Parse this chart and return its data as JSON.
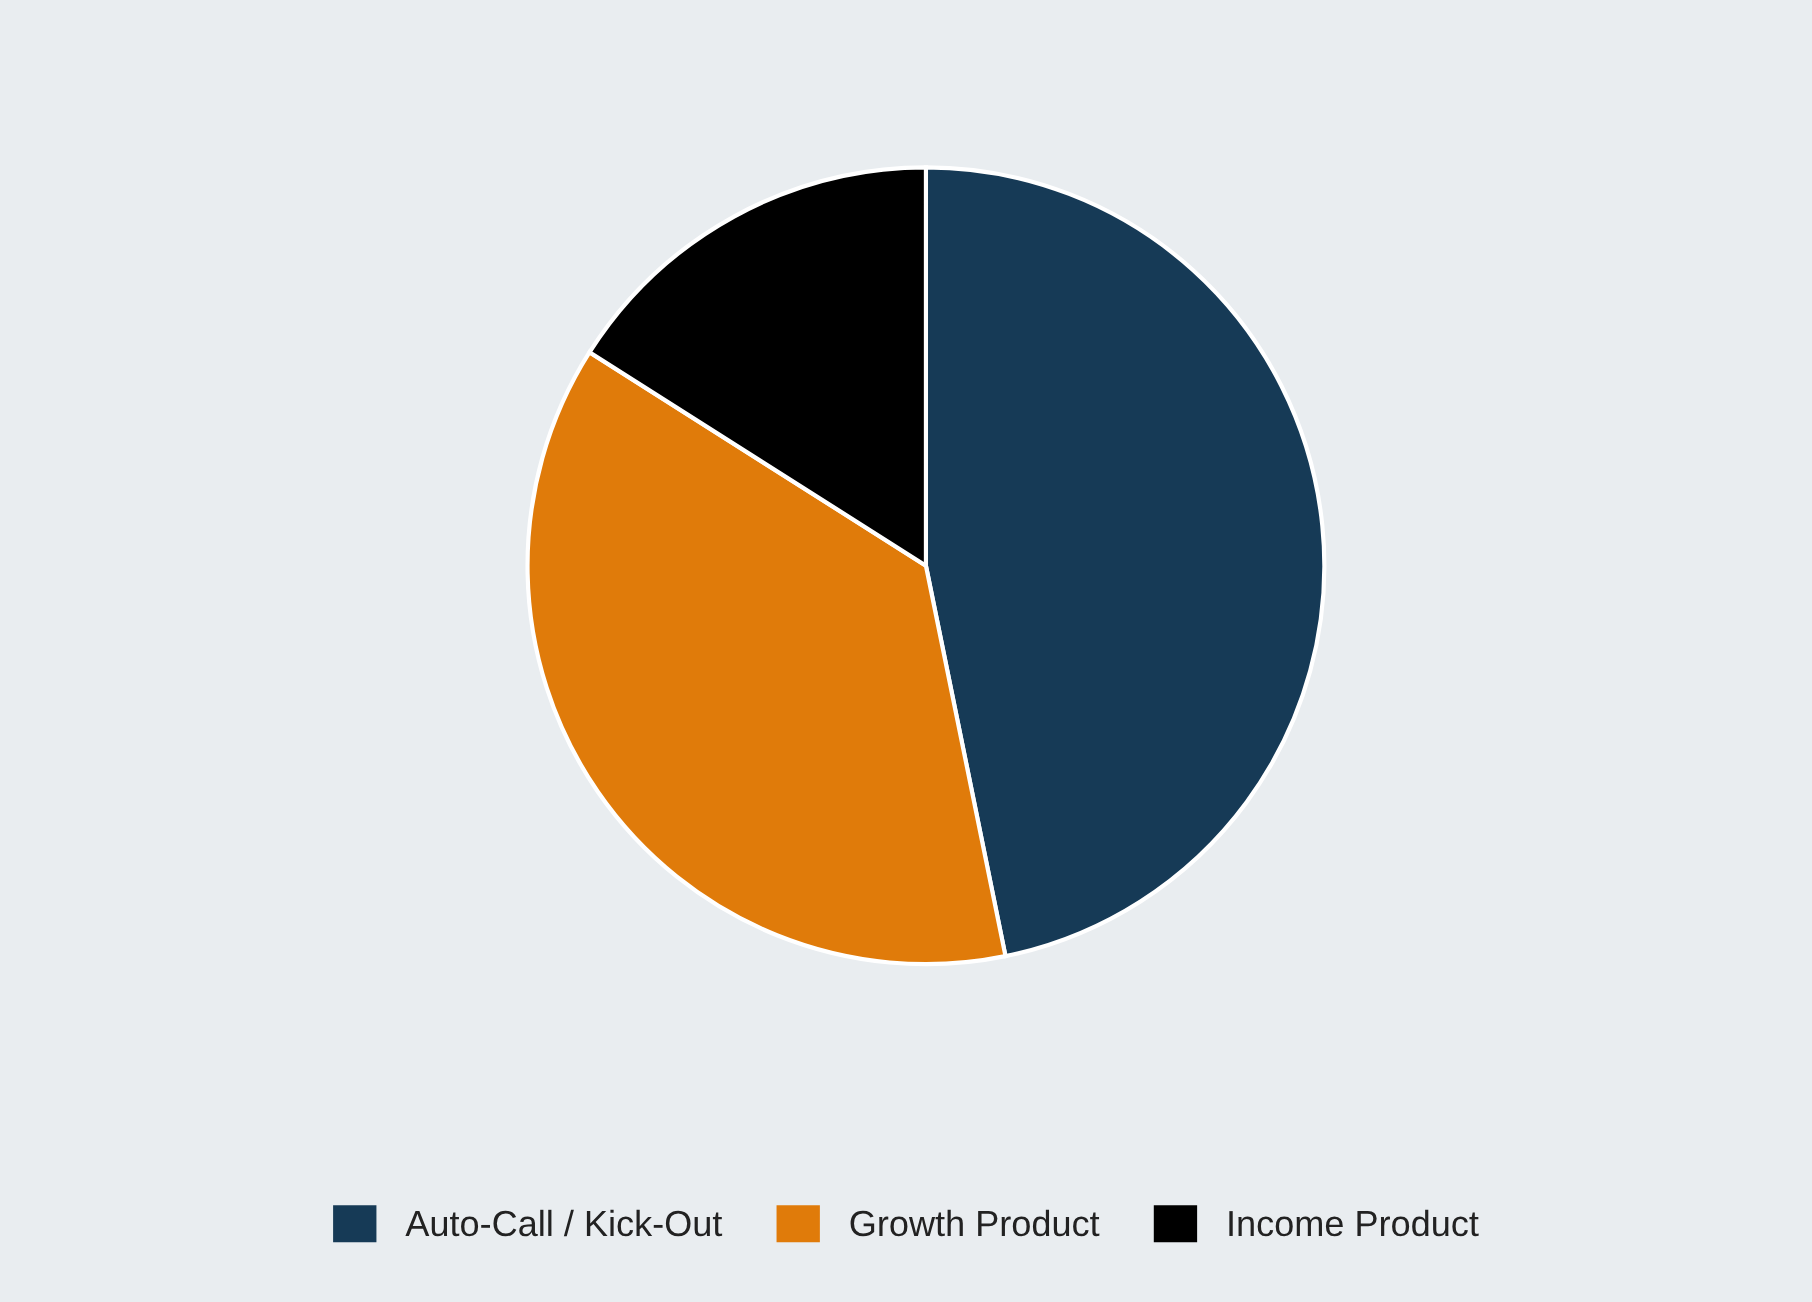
{
  "chart_data": {
    "type": "pie",
    "categories": [
      "Auto-Call / Kick-Out",
      "Growth Product",
      "Income Product"
    ],
    "values": [
      46.8,
      37.2,
      16.0
    ],
    "colors": [
      "#163a56",
      "#e07b0a",
      "#000000"
    ],
    "legend": "bottom"
  }
}
